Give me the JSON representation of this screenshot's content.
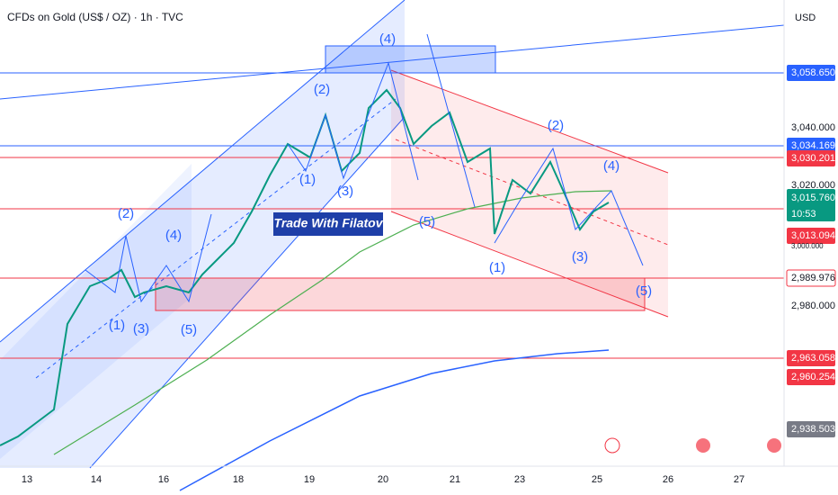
{
  "header": {
    "title": "CFDs on Gold (US$ / OZ) · 1h · TVC",
    "currency": "USD"
  },
  "price_axis": {
    "labels": [
      "3,058.650",
      "3,040.000",
      "3,034.169",
      "3,030.201",
      "3,020.000",
      "3,015.760",
      "3,013.094",
      "3,000.000",
      "2,989.976",
      "2,980.000",
      "2,963.058",
      "2,960.254",
      "2,938.503"
    ]
  },
  "countdown": "10:53",
  "time_axis": {
    "labels": [
      "13",
      "14",
      "16",
      "18",
      "19",
      "20",
      "21",
      "23",
      "25",
      "26",
      "27"
    ]
  },
  "watermark": "Trade With Filatov",
  "waves": [
    "(2)",
    "(4)",
    "(1)",
    "(3)",
    "(5)",
    "(2)",
    "(1)",
    "(3)",
    "(4)",
    "(5)",
    "(1)",
    "(2)",
    "(4)",
    "(3)",
    "(5)"
  ]
}
